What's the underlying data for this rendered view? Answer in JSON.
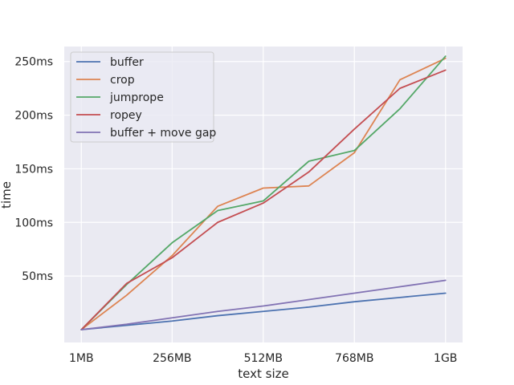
{
  "chart_data": {
    "type": "line",
    "xlabel": "text size",
    "ylabel": "time",
    "x_unit": "MB",
    "x_ticks": [
      {
        "value": 1,
        "label": "1MB"
      },
      {
        "value": 256,
        "label": "256MB"
      },
      {
        "value": 512,
        "label": "512MB"
      },
      {
        "value": 768,
        "label": "768MB"
      },
      {
        "value": 1024,
        "label": "1GB"
      }
    ],
    "y_unit": "ms",
    "y_ticks": [
      {
        "value": 50,
        "label": "50ms"
      },
      {
        "value": 100,
        "label": "100ms"
      },
      {
        "value": 150,
        "label": "150ms"
      },
      {
        "value": 200,
        "label": "200ms"
      },
      {
        "value": 250,
        "label": "250ms"
      }
    ],
    "xlim": [
      -47,
      1072
    ],
    "ylim": [
      -12,
      264
    ],
    "grid": true,
    "legend_position": "top-left",
    "x": [
      1,
      128,
      256,
      384,
      512,
      640,
      768,
      896,
      1024
    ],
    "series": [
      {
        "name": "buffer",
        "color": "#4c72b0",
        "values": [
          0,
          4,
          8,
          13,
          17,
          21,
          26,
          30,
          34
        ]
      },
      {
        "name": "crop",
        "color": "#dd8452",
        "values": [
          0,
          32,
          69,
          115,
          132,
          134,
          165,
          233,
          253
        ]
      },
      {
        "name": "jumprope",
        "color": "#55a868",
        "values": [
          0,
          42,
          81,
          111,
          120,
          157,
          167,
          206,
          255
        ]
      },
      {
        "name": "ropey",
        "color": "#c44e52",
        "values": [
          0,
          43,
          67,
          100,
          118,
          147,
          187,
          225,
          242
        ]
      },
      {
        "name": "buffer + move gap",
        "color": "#8172b3",
        "values": [
          0,
          5,
          11,
          17,
          22,
          28,
          34,
          40,
          46
        ]
      }
    ]
  }
}
